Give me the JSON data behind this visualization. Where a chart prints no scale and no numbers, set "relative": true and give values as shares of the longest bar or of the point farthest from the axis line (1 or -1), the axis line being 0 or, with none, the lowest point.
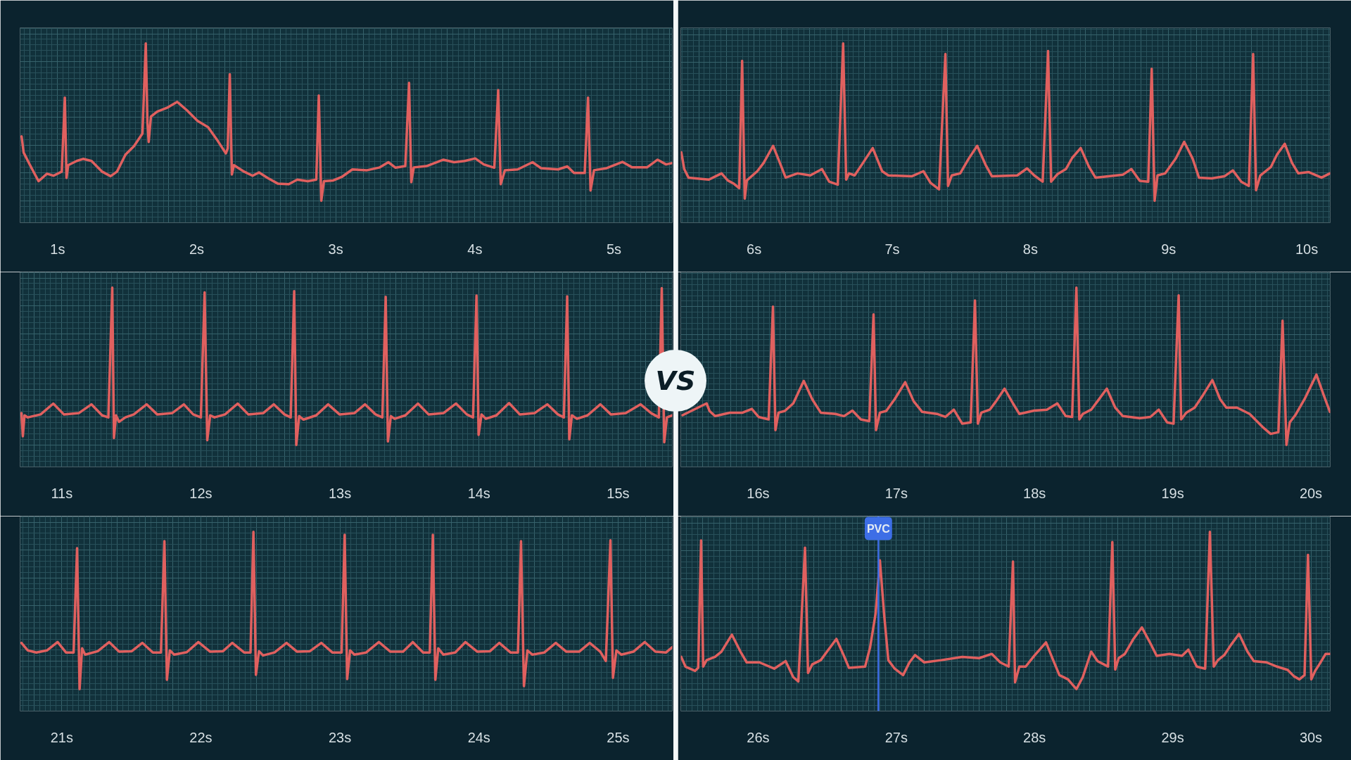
{
  "chart_data": [
    {
      "type": "line",
      "relative": true,
      "grid": true,
      "xlim": [
        0.73,
        5.42
      ],
      "xticks": [
        {
          "value": 1,
          "label": "1s"
        },
        {
          "value": 2,
          "label": "2s"
        },
        {
          "value": 3,
          "label": "3s"
        },
        {
          "value": 4,
          "label": "4s"
        },
        {
          "value": 5,
          "label": "5s"
        }
      ],
      "x": [
        0.741,
        0.756,
        0.802,
        0.863,
        0.924,
        0.97,
        1.03,
        1.052,
        1.064,
        1.076,
        1.137,
        1.183,
        1.244,
        1.32,
        1.381,
        1.427,
        1.488,
        1.549,
        1.61,
        1.634,
        1.646,
        1.655,
        1.671,
        1.716,
        1.793,
        1.86,
        1.93,
        2.006,
        2.082,
        2.143,
        2.21,
        2.223,
        2.238,
        2.253,
        2.268,
        2.341,
        2.402,
        2.448,
        2.509,
        2.585,
        2.662,
        2.723,
        2.799,
        2.86,
        2.878,
        2.896,
        2.915,
        2.982,
        3.043,
        3.119,
        3.226,
        3.317,
        3.378,
        3.43,
        3.5,
        3.527,
        3.543,
        3.561,
        3.652,
        3.774,
        3.851,
        3.927,
        4.003,
        4.064,
        4.14,
        4.168,
        4.186,
        4.216,
        4.308,
        4.415,
        4.476,
        4.598,
        4.665,
        4.713,
        4.79,
        4.814,
        4.832,
        4.857,
        4.948,
        5.061,
        5.131,
        5.238,
        5.314,
        5.375,
        5.415
      ],
      "series": [
        {
          "color": "#e0605f",
          "values": [
            0.409,
            0.306,
            0.226,
            0.124,
            0.172,
            0.159,
            0.185,
            0.656,
            0.145,
            0.226,
            0.253,
            0.266,
            0.253,
            0.185,
            0.156,
            0.185,
            0.293,
            0.347,
            0.427,
            1.0,
            0.495,
            0.374,
            0.535,
            0.567,
            0.594,
            0.629,
            0.575,
            0.508,
            0.468,
            0.392,
            0.301,
            0.333,
            0.804,
            0.167,
            0.226,
            0.185,
            0.159,
            0.18,
            0.145,
            0.108,
            0.105,
            0.134,
            0.124,
            0.134,
            0.669,
            0.0,
            0.124,
            0.129,
            0.151,
            0.199,
            0.194,
            0.212,
            0.245,
            0.21,
            0.22,
            0.75,
            0.118,
            0.212,
            0.22,
            0.261,
            0.245,
            0.253,
            0.269,
            0.231,
            0.21,
            0.704,
            0.105,
            0.194,
            0.199,
            0.245,
            0.207,
            0.199,
            0.218,
            0.177,
            0.177,
            0.656,
            0.065,
            0.194,
            0.207,
            0.247,
            0.212,
            0.212,
            0.261,
            0.231,
            0.239
          ]
        }
      ]
    },
    {
      "type": "line",
      "relative": true,
      "grid": true,
      "xlim": [
        5.47,
        10.17
      ],
      "xticks": [
        {
          "value": 6,
          "label": "6s"
        },
        {
          "value": 7,
          "label": "7s"
        },
        {
          "value": 8,
          "label": "8s"
        },
        {
          "value": 9,
          "label": "9s"
        },
        {
          "value": 10,
          "label": "10s"
        }
      ],
      "x": [
        5.474,
        5.495,
        5.526,
        5.673,
        5.765,
        5.81,
        5.856,
        5.893,
        5.914,
        5.933,
        5.948,
        6.024,
        6.07,
        6.138,
        6.187,
        6.229,
        6.315,
        6.407,
        6.492,
        6.544,
        6.606,
        6.645,
        6.667,
        6.688,
        6.728,
        6.789,
        6.859,
        6.927,
        6.972,
        7.141,
        7.226,
        7.278,
        7.339,
        7.385,
        7.404,
        7.431,
        7.492,
        7.554,
        7.615,
        7.676,
        7.722,
        7.905,
        7.976,
        8.028,
        8.089,
        8.128,
        8.15,
        8.196,
        8.257,
        8.303,
        8.364,
        8.425,
        8.471,
        8.67,
        8.731,
        8.792,
        8.853,
        8.878,
        8.899,
        8.92,
        8.976,
        9.052,
        9.113,
        9.174,
        9.22,
        9.312,
        9.404,
        9.465,
        9.526,
        9.581,
        9.612,
        9.633,
        9.664,
        9.74,
        9.786,
        9.841,
        9.893,
        9.939,
        10.015,
        10.107,
        10.168
      ],
      "series": [
        {
          "color": "#e0605f",
          "values": [
            0.308,
            0.201,
            0.147,
            0.134,
            0.174,
            0.129,
            0.107,
            0.08,
            0.89,
            0.013,
            0.129,
            0.188,
            0.241,
            0.349,
            0.241,
            0.147,
            0.174,
            0.161,
            0.201,
            0.121,
            0.102,
            1.0,
            0.134,
            0.174,
            0.161,
            0.241,
            0.335,
            0.188,
            0.161,
            0.155,
            0.188,
            0.113,
            0.072,
            0.933,
            0.094,
            0.161,
            0.174,
            0.268,
            0.349,
            0.228,
            0.155,
            0.161,
            0.206,
            0.161,
            0.121,
            0.952,
            0.121,
            0.169,
            0.201,
            0.273,
            0.335,
            0.214,
            0.147,
            0.166,
            0.201,
            0.126,
            0.121,
            0.839,
            0.0,
            0.161,
            0.174,
            0.268,
            0.375,
            0.268,
            0.147,
            0.142,
            0.155,
            0.193,
            0.121,
            0.094,
            0.933,
            0.067,
            0.161,
            0.214,
            0.295,
            0.362,
            0.241,
            0.174,
            0.182,
            0.147,
            0.174
          ]
        }
      ]
    },
    {
      "type": "line",
      "relative": true,
      "grid": true,
      "xlim": [
        10.7,
        15.39
      ],
      "xticks": [
        {
          "value": 11,
          "label": "11s"
        },
        {
          "value": 12,
          "label": "12s"
        },
        {
          "value": 13,
          "label": "13s"
        },
        {
          "value": 14,
          "label": "14s"
        },
        {
          "value": 15,
          "label": "15s"
        }
      ],
      "annotations": [
        "VS"
      ],
      "x": [
        10.71,
        10.72,
        10.732,
        10.756,
        10.848,
        10.939,
        11.015,
        11.122,
        11.213,
        11.29,
        11.335,
        11.363,
        11.375,
        11.39,
        11.412,
        11.457,
        11.518,
        11.61,
        11.686,
        11.793,
        11.878,
        11.945,
        12.0,
        12.027,
        12.046,
        12.067,
        12.098,
        12.174,
        12.265,
        12.341,
        12.448,
        12.524,
        12.601,
        12.646,
        12.671,
        12.686,
        12.707,
        12.738,
        12.829,
        12.915,
        12.997,
        13.104,
        13.18,
        13.256,
        13.305,
        13.329,
        13.345,
        13.366,
        13.393,
        13.47,
        13.561,
        13.637,
        13.744,
        13.835,
        13.912,
        13.957,
        13.982,
        13.997,
        14.018,
        14.049,
        14.125,
        14.216,
        14.293,
        14.399,
        14.491,
        14.567,
        14.61,
        14.634,
        14.649,
        14.668,
        14.704,
        14.78,
        14.872,
        14.948,
        15.055,
        15.162,
        15.238,
        15.293,
        15.314,
        15.332,
        15.351,
        15.39
      ],
      "series": [
        {
          "color": "#e0605f",
          "values": [
            0.202,
            0.055,
            0.188,
            0.175,
            0.194,
            0.263,
            0.194,
            0.202,
            0.258,
            0.188,
            0.175,
            1.0,
            0.044,
            0.188,
            0.147,
            0.175,
            0.194,
            0.258,
            0.194,
            0.202,
            0.258,
            0.194,
            0.175,
            0.97,
            0.03,
            0.188,
            0.175,
            0.194,
            0.263,
            0.194,
            0.202,
            0.258,
            0.194,
            0.175,
            0.978,
            0.0,
            0.183,
            0.161,
            0.188,
            0.258,
            0.194,
            0.202,
            0.258,
            0.194,
            0.175,
            0.942,
            0.022,
            0.183,
            0.166,
            0.188,
            0.263,
            0.194,
            0.202,
            0.263,
            0.194,
            0.175,
            0.95,
            0.064,
            0.194,
            0.166,
            0.188,
            0.266,
            0.194,
            0.202,
            0.258,
            0.194,
            0.175,
            0.945,
            0.036,
            0.188,
            0.166,
            0.188,
            0.258,
            0.194,
            0.202,
            0.258,
            0.202,
            0.175,
            0.997,
            0.017,
            0.175,
            0.188
          ]
        }
      ]
    },
    {
      "type": "line",
      "relative": true,
      "grid": true,
      "xlim": [
        15.44,
        20.14
      ],
      "xticks": [
        {
          "value": 16,
          "label": "16s"
        },
        {
          "value": 17,
          "label": "17s"
        },
        {
          "value": 18,
          "label": "18s"
        },
        {
          "value": 19,
          "label": "19s"
        },
        {
          "value": 20,
          "label": "20s"
        }
      ],
      "x": [
        15.453,
        15.627,
        15.648,
        15.688,
        15.795,
        15.887,
        15.954,
        16.003,
        16.076,
        16.107,
        16.125,
        16.147,
        16.193,
        16.254,
        16.33,
        16.391,
        16.453,
        16.56,
        16.621,
        16.682,
        16.743,
        16.804,
        16.835,
        16.853,
        16.881,
        16.927,
        16.988,
        17.064,
        17.125,
        17.187,
        17.294,
        17.355,
        17.416,
        17.477,
        17.538,
        17.569,
        17.59,
        17.615,
        17.676,
        17.722,
        17.783,
        17.844,
        17.89,
        17.997,
        18.089,
        18.165,
        18.226,
        18.272,
        18.303,
        18.324,
        18.349,
        18.41,
        18.456,
        18.523,
        18.584,
        18.639,
        18.761,
        18.838,
        18.899,
        18.96,
        19.006,
        19.043,
        19.061,
        19.098,
        19.159,
        19.22,
        19.287,
        19.343,
        19.388,
        19.465,
        19.557,
        19.648,
        19.709,
        19.765,
        19.795,
        19.823,
        19.847,
        19.887,
        19.954,
        20.04,
        20.092,
        20.138
      ],
      "series": [
        {
          "color": "#e0605f",
          "values": [
            0.189,
            0.264,
            0.216,
            0.183,
            0.205,
            0.205,
            0.229,
            0.178,
            0.162,
            0.879,
            0.094,
            0.205,
            0.216,
            0.264,
            0.407,
            0.291,
            0.205,
            0.197,
            0.183,
            0.218,
            0.162,
            0.151,
            0.83,
            0.094,
            0.205,
            0.216,
            0.291,
            0.399,
            0.278,
            0.21,
            0.197,
            0.178,
            0.224,
            0.135,
            0.143,
            0.919,
            0.135,
            0.205,
            0.224,
            0.278,
            0.358,
            0.264,
            0.197,
            0.218,
            0.224,
            0.264,
            0.183,
            0.178,
            1.0,
            0.162,
            0.197,
            0.224,
            0.278,
            0.358,
            0.237,
            0.183,
            0.17,
            0.178,
            0.224,
            0.143,
            0.135,
            0.951,
            0.162,
            0.205,
            0.237,
            0.318,
            0.412,
            0.291,
            0.237,
            0.237,
            0.197,
            0.116,
            0.07,
            0.081,
            0.79,
            0.0,
            0.143,
            0.189,
            0.291,
            0.447,
            0.318,
            0.21
          ]
        }
      ]
    },
    {
      "type": "line",
      "relative": true,
      "grid": true,
      "xlim": [
        20.7,
        25.39
      ],
      "xticks": [
        {
          "value": 21,
          "label": "21s"
        },
        {
          "value": 22,
          "label": "22s"
        },
        {
          "value": 23,
          "label": "23s"
        },
        {
          "value": 24,
          "label": "24s"
        },
        {
          "value": 25,
          "label": "25s"
        }
      ],
      "x": [
        20.71,
        20.756,
        20.817,
        20.893,
        20.97,
        21.03,
        21.085,
        21.11,
        21.128,
        21.146,
        21.168,
        21.259,
        21.341,
        21.412,
        21.503,
        21.579,
        21.655,
        21.713,
        21.738,
        21.756,
        21.777,
        21.808,
        21.899,
        21.982,
        22.067,
        22.159,
        22.226,
        22.311,
        22.357,
        22.378,
        22.396,
        22.418,
        22.448,
        22.53,
        22.616,
        22.692,
        22.784,
        22.866,
        22.945,
        23.012,
        23.034,
        23.052,
        23.073,
        23.104,
        23.189,
        23.28,
        23.363,
        23.454,
        23.524,
        23.598,
        23.646,
        23.668,
        23.686,
        23.707,
        23.744,
        23.829,
        23.902,
        23.988,
        24.079,
        24.146,
        24.226,
        24.28,
        24.302,
        24.323,
        24.348,
        24.384,
        24.47,
        24.552,
        24.628,
        24.72,
        24.796,
        24.872,
        24.912,
        24.945,
        24.963,
        24.988,
        25.024,
        25.11,
        25.192,
        25.268,
        25.345,
        25.39
      ],
      "series": [
        {
          "color": "#e0605f",
          "values": [
            0.294,
            0.246,
            0.233,
            0.246,
            0.299,
            0.233,
            0.233,
            0.896,
            0.0,
            0.259,
            0.219,
            0.241,
            0.299,
            0.238,
            0.241,
            0.294,
            0.233,
            0.233,
            0.941,
            0.059,
            0.246,
            0.219,
            0.235,
            0.299,
            0.238,
            0.241,
            0.294,
            0.233,
            0.233,
            1.0,
            0.091,
            0.241,
            0.214,
            0.233,
            0.294,
            0.238,
            0.241,
            0.294,
            0.233,
            0.233,
            0.981,
            0.064,
            0.246,
            0.219,
            0.233,
            0.299,
            0.238,
            0.238,
            0.299,
            0.233,
            0.233,
            0.981,
            0.059,
            0.259,
            0.219,
            0.233,
            0.299,
            0.238,
            0.241,
            0.294,
            0.233,
            0.233,
            0.941,
            0.019,
            0.246,
            0.219,
            0.233,
            0.294,
            0.238,
            0.238,
            0.294,
            0.238,
            0.179,
            0.947,
            0.072,
            0.246,
            0.219,
            0.238,
            0.299,
            0.238,
            0.233,
            0.267
          ]
        }
      ]
    },
    {
      "type": "line",
      "relative": true,
      "grid": true,
      "xlim": [
        25.44,
        30.14
      ],
      "xticks": [
        {
          "value": 26,
          "label": "26s"
        },
        {
          "value": 27,
          "label": "27s"
        },
        {
          "value": 28,
          "label": "28s"
        },
        {
          "value": 29,
          "label": "29s"
        },
        {
          "value": 30,
          "label": "30s"
        }
      ],
      "ref_lines": [
        {
          "axis": "x",
          "value": 26.87,
          "label": "PVC",
          "color": "#3d6ee6"
        }
      ],
      "x": [
        25.443,
        25.474,
        25.544,
        25.566,
        25.587,
        25.602,
        25.627,
        25.688,
        25.734,
        25.81,
        25.872,
        25.917,
        26.009,
        26.116,
        26.199,
        26.254,
        26.291,
        26.339,
        26.361,
        26.391,
        26.453,
        26.498,
        26.566,
        26.621,
        26.657,
        26.774,
        26.81,
        26.85,
        26.881,
        26.911,
        26.942,
        26.988,
        27.049,
        27.095,
        27.135,
        27.202,
        27.324,
        27.477,
        27.599,
        27.691,
        27.752,
        27.813,
        27.844,
        27.859,
        27.89,
        27.936,
        27.997,
        28.083,
        28.135,
        28.18,
        28.242,
        28.303,
        28.349,
        28.41,
        28.456,
        28.502,
        28.532,
        28.563,
        28.584,
        28.609,
        28.654,
        28.716,
        28.777,
        28.838,
        28.884,
        28.976,
        29.067,
        29.113,
        29.174,
        29.235,
        29.269,
        29.297,
        29.327,
        29.373,
        29.419,
        29.48,
        29.541,
        29.587,
        29.679,
        29.755,
        29.832,
        29.878,
        29.917,
        29.954,
        29.979,
        30.003,
        30.031,
        30.061,
        30.107,
        30.138
      ],
      "series": [
        {
          "color": "#e0605f",
          "values": [
            0.205,
            0.143,
            0.116,
            0.135,
            0.946,
            0.143,
            0.184,
            0.205,
            0.238,
            0.346,
            0.238,
            0.17,
            0.17,
            0.13,
            0.178,
            0.076,
            0.049,
            0.9,
            0.103,
            0.157,
            0.184,
            0.238,
            0.319,
            0.211,
            0.135,
            0.143,
            0.265,
            0.481,
            0.819,
            0.481,
            0.184,
            0.13,
            0.089,
            0.17,
            0.216,
            0.17,
            0.184,
            0.205,
            0.197,
            0.224,
            0.17,
            0.143,
            0.811,
            0.043,
            0.143,
            0.143,
            0.211,
            0.297,
            0.184,
            0.089,
            0.062,
            0.0,
            0.076,
            0.238,
            0.178,
            0.157,
            0.143,
            0.935,
            0.124,
            0.197,
            0.224,
            0.319,
            0.392,
            0.292,
            0.211,
            0.224,
            0.211,
            0.251,
            0.143,
            0.13,
            1.0,
            0.143,
            0.184,
            0.216,
            0.278,
            0.351,
            0.238,
            0.178,
            0.17,
            0.143,
            0.122,
            0.081,
            0.062,
            0.089,
            0.854,
            0.062,
            0.116,
            0.157,
            0.224,
            0.224
          ]
        }
      ]
    }
  ]
}
